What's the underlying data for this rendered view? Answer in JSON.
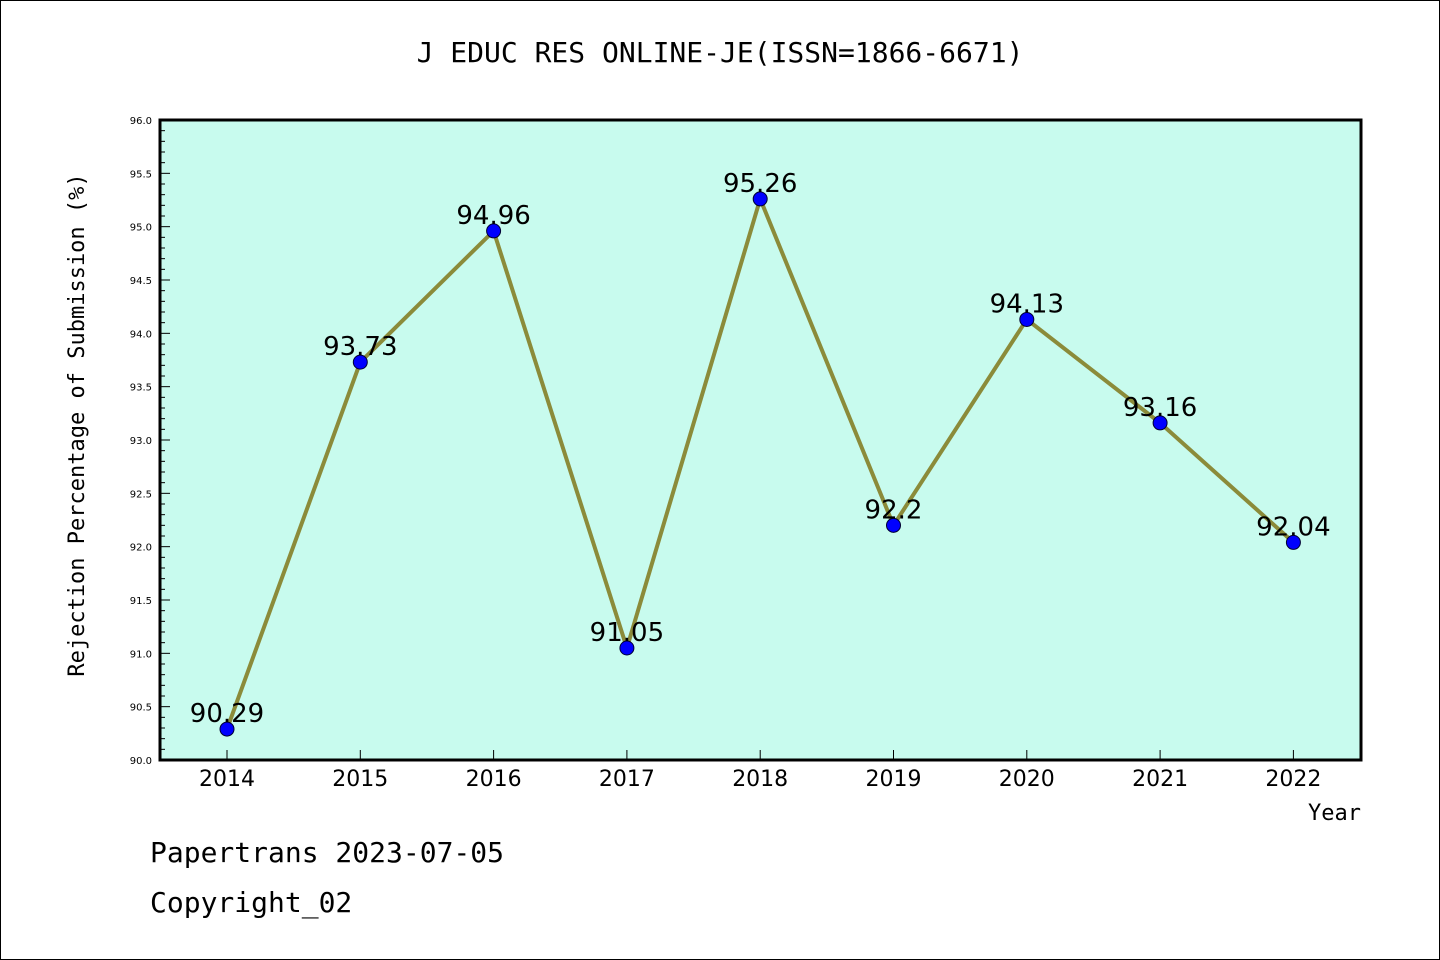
{
  "page": {
    "footer_line1": "Papertrans 2023-07-05",
    "footer_line2": "Copyright_02"
  },
  "chart_data": {
    "type": "line",
    "title": "J EDUC RES ONLINE-JE(ISSN=1866-6671)",
    "xlabel": "Year",
    "ylabel": "Rejection Percentage of Submission (%)",
    "categories": [
      "2014",
      "2015",
      "2016",
      "2017",
      "2018",
      "2019",
      "2020",
      "2021",
      "2022"
    ],
    "series": [
      {
        "values": [
          90.29,
          93.73,
          94.96,
          91.05,
          95.26,
          92.2,
          94.13,
          93.16,
          92.04
        ],
        "labels": [
          "90.29",
          "93.73",
          "94.96",
          "91.05",
          "95.26",
          "92.2",
          "94.13",
          "93.16",
          "92.04"
        ]
      }
    ],
    "ylim": [
      90.0,
      96.0
    ],
    "y_ticks": [
      "90.0",
      "90.5",
      "91.0",
      "91.5",
      "92.0",
      "92.5",
      "93.0",
      "93.5",
      "94.0",
      "94.5",
      "95.0",
      "95.5",
      "96.0"
    ],
    "grid": false,
    "colors": {
      "plot_background": "#c8fbee",
      "line": "#8b8b3a",
      "marker": "#0000ff",
      "axis": "#000000"
    }
  }
}
